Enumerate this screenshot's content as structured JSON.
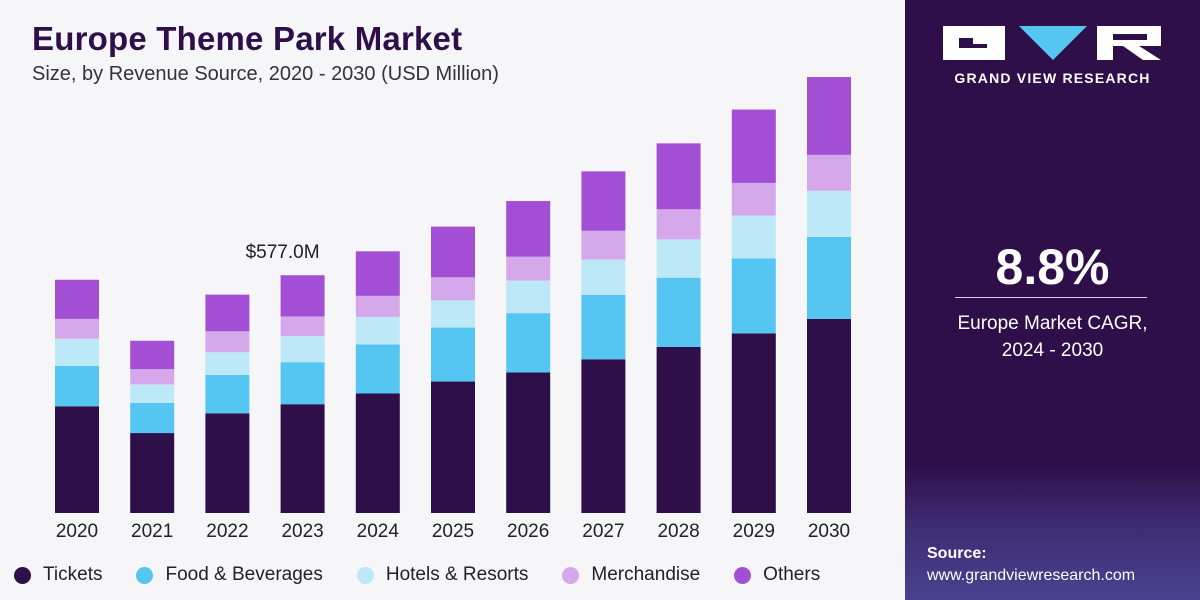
{
  "header": {
    "title": "Europe Theme Park Market",
    "subtitle": "Size, by Revenue Source, 2020 - 2030 (USD Million)"
  },
  "sidebar": {
    "brand": "GRAND VIEW RESEARCH",
    "cagr_value": "8.8%",
    "cagr_label_line1": "Europe Market CAGR,",
    "cagr_label_line2": "2024 - 2030",
    "source_label": "Source:",
    "source_url": "www.grandviewresearch.com"
  },
  "colors": {
    "accent": "#2e0f4a",
    "tickets": "#2e0f4a",
    "food": "#55c6f2",
    "hotels": "#bde8f8",
    "merch": "#d4a8ea",
    "others": "#a24fd6"
  },
  "chart_data": {
    "type": "bar",
    "stacked": true,
    "title": "Europe Theme Park Market",
    "subtitle": "Size, by Revenue Source, 2020 - 2030 (USD Million)",
    "xlabel": "",
    "ylabel": "USD Million",
    "ylim": [
      0,
      1075
    ],
    "categories": [
      "2020",
      "2021",
      "2022",
      "2023",
      "2024",
      "2025",
      "2026",
      "2027",
      "2028",
      "2029",
      "2030"
    ],
    "series": [
      {
        "name": "Tickets",
        "color": "#2e0f4a",
        "values": [
          259,
          194,
          242,
          264,
          290,
          319,
          341,
          373,
          403,
          436,
          471
        ]
      },
      {
        "name": "Food & Beverages",
        "color": "#55c6f2",
        "values": [
          98,
          73,
          93,
          102,
          119,
          131,
          144,
          156,
          168,
          182,
          199
        ]
      },
      {
        "name": "Hotels & Resorts",
        "color": "#bde8f8",
        "values": [
          66,
          45,
          55,
          63,
          67,
          66,
          79,
          86,
          93,
          104,
          112
        ]
      },
      {
        "name": "Merchandise",
        "color": "#d4a8ea",
        "values": [
          48,
          37,
          51,
          48,
          51,
          56,
          58,
          70,
          73,
          79,
          87
        ]
      },
      {
        "name": "Others",
        "color": "#a24fd6",
        "values": [
          95,
          69,
          89,
          100,
          108,
          123,
          135,
          144,
          160,
          178,
          189
        ]
      }
    ],
    "annotations": [
      {
        "category": "2023",
        "text": "$577.0M"
      }
    ],
    "legend_position": "bottom"
  }
}
